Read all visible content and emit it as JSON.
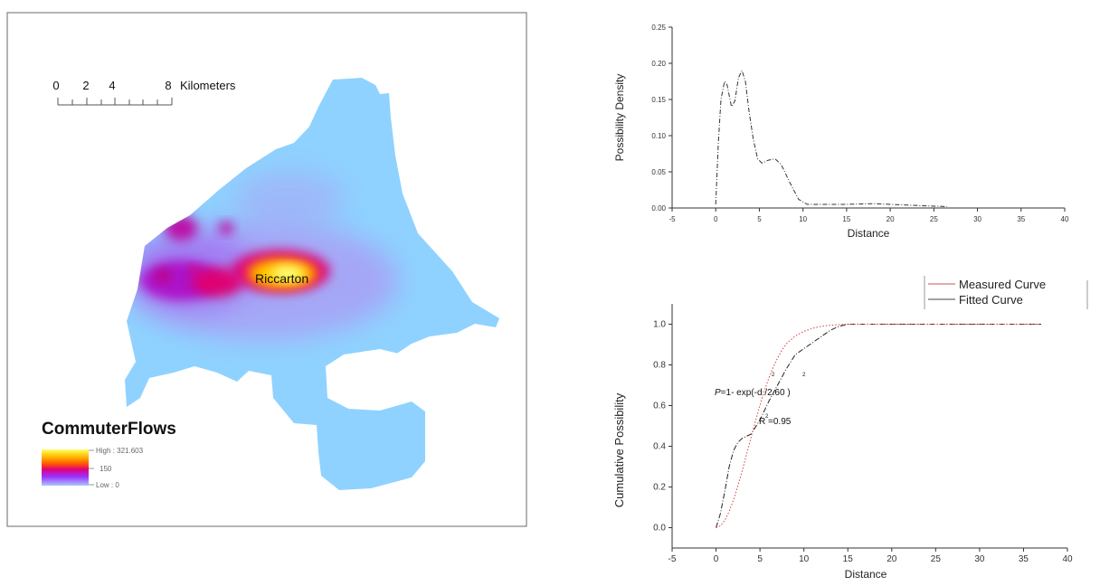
{
  "map": {
    "scale_bar": {
      "ticks": [
        "0",
        "2",
        "4",
        "8"
      ],
      "unit": "Kilometers"
    },
    "place_label": "Riccarton",
    "legend": {
      "title": "CommuterFlows",
      "high_label": "High : 321.603",
      "mid_label": "150",
      "low_label": "Low : 0",
      "colors": [
        "#ffff66",
        "#ffbb00",
        "#ff5500",
        "#e0007a",
        "#9a30ff",
        "#a8c8ff"
      ]
    },
    "land_color": "#8fd2ff"
  },
  "chart_data": [
    {
      "type": "line",
      "xlabel": "Distance",
      "ylabel": "Possibility Density",
      "xlim": [
        -5,
        40
      ],
      "ylim": [
        0,
        0.25
      ],
      "xticks": [
        -5,
        0,
        5,
        10,
        15,
        20,
        25,
        30,
        35,
        40
      ],
      "yticks": [
        0.0,
        0.05,
        0.1,
        0.15,
        0.2,
        0.25
      ],
      "ytick_labels": [
        "0.00",
        "0.05",
        "0.10",
        "0.15",
        "0.20",
        "0.25"
      ],
      "grid": false,
      "series": [
        {
          "x": [
            0,
            0.3,
            0.6,
            1.0,
            1.3,
            1.8,
            2.2,
            2.6,
            3.0,
            3.4,
            3.8,
            4.3,
            4.8,
            5.3,
            6.0,
            6.8,
            7.5,
            8.5,
            9.5,
            10.5,
            12,
            15,
            18,
            20,
            22,
            24,
            26.5
          ],
          "y": [
            0.005,
            0.09,
            0.15,
            0.175,
            0.17,
            0.14,
            0.148,
            0.18,
            0.19,
            0.175,
            0.135,
            0.095,
            0.068,
            0.062,
            0.066,
            0.068,
            0.06,
            0.035,
            0.012,
            0.005,
            0.005,
            0.005,
            0.006,
            0.005,
            0.004,
            0.003,
            0.002
          ]
        }
      ]
    },
    {
      "type": "line",
      "xlabel": "Distance",
      "ylabel": "Cumulative Possibility",
      "xlim": [
        -5,
        40
      ],
      "ylim": [
        -0.1,
        1.1
      ],
      "xticks": [
        -5,
        0,
        5,
        10,
        15,
        20,
        25,
        30,
        35,
        40
      ],
      "yticks": [
        0.0,
        0.2,
        0.4,
        0.6,
        0.8,
        1.0
      ],
      "ytick_labels": [
        "0.0",
        "0.2",
        "0.4",
        "0.6",
        "0.8",
        "1.0"
      ],
      "grid": false,
      "legend_position": "top-right",
      "series": [
        {
          "name": "Measured Curve",
          "x": [
            0,
            0.5,
            1,
            1.5,
            2,
            2.5,
            3,
            4,
            5,
            6,
            7,
            8,
            9,
            10,
            11,
            12,
            13,
            14,
            15,
            20,
            25,
            30,
            37
          ],
          "y": [
            0.0,
            0.07,
            0.18,
            0.3,
            0.38,
            0.42,
            0.44,
            0.46,
            0.53,
            0.62,
            0.7,
            0.78,
            0.85,
            0.88,
            0.91,
            0.94,
            0.97,
            0.99,
            1.0,
            1.0,
            1.0,
            1.0,
            1.0
          ]
        },
        {
          "name": "Fitted Curve",
          "x": [
            0,
            0.5,
            1,
            1.5,
            2,
            2.5,
            3,
            3.5,
            4,
            4.5,
            5,
            5.5,
            6,
            6.5,
            7,
            7.5,
            8,
            9,
            10,
            11,
            12,
            13,
            14,
            15,
            20,
            30,
            37
          ],
          "y": [
            0.0,
            0.009,
            0.037,
            0.08,
            0.138,
            0.207,
            0.283,
            0.364,
            0.446,
            0.526,
            0.602,
            0.672,
            0.734,
            0.788,
            0.834,
            0.872,
            0.903,
            0.942,
            0.965,
            0.98,
            0.99,
            0.995,
            0.998,
            1.0,
            1.0,
            1.0,
            1.0
          ]
        }
      ],
      "annotations": {
        "equation_prefix": "P",
        "equation_body": "=1- exp(-d  /2.60  )",
        "superscript": "2",
        "r2_prefix": "R",
        "r2_value": " =0.95"
      }
    }
  ]
}
